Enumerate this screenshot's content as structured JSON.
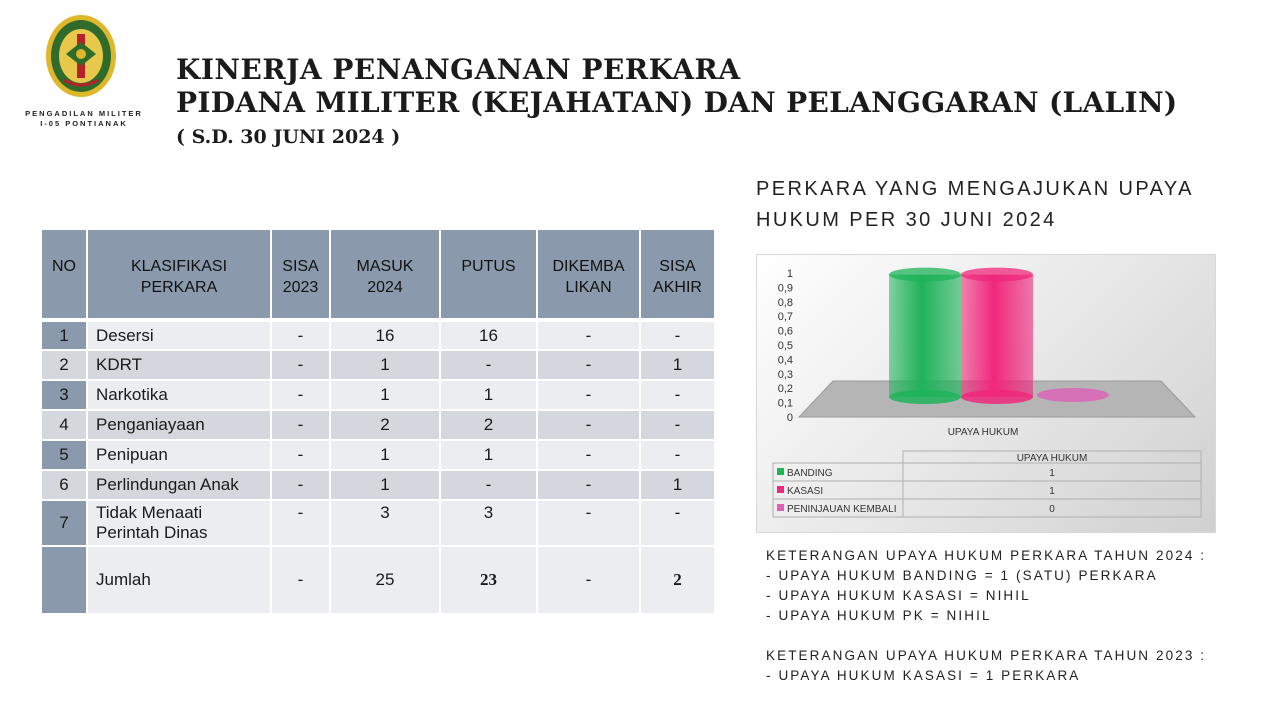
{
  "header": {
    "org_line1": "PENGADILAN MILITER",
    "org_line2": "I-05 PONTIANAK",
    "title_line1": "KINERJA PENANGANAN PERKARA",
    "title_line2": "PIDANA MILITER (KEJAHATAN) DAN PELANGGARAN (LALIN)",
    "subtitle": "( S.D. 30 JUNI 2024 )"
  },
  "table": {
    "headers": [
      "NO",
      "KLASIFIKASI PERKARA",
      "SISA 2023",
      "MASUK 2024",
      "PUTUS",
      "DIKEMBA LIKAN",
      "SISA AKHIR"
    ],
    "rows": [
      {
        "no": "1",
        "name": "Desersi",
        "sisa": "-",
        "masuk": "16",
        "putus": "16",
        "dikembalikan": "-",
        "sisa_akhir": "-"
      },
      {
        "no": "2",
        "name": "KDRT",
        "sisa": "-",
        "masuk": "1",
        "putus": "-",
        "dikembalikan": "-",
        "sisa_akhir": "1"
      },
      {
        "no": "3",
        "name": "Narkotika",
        "sisa": "-",
        "masuk": "1",
        "putus": "1",
        "dikembalikan": "-",
        "sisa_akhir": "-"
      },
      {
        "no": "4",
        "name": "Penganiayaan",
        "sisa": "-",
        "masuk": "2",
        "putus": "2",
        "dikembalikan": "-",
        "sisa_akhir": "-"
      },
      {
        "no": "5",
        "name": "Penipuan",
        "sisa": "-",
        "masuk": "1",
        "putus": "1",
        "dikembalikan": "-",
        "sisa_akhir": "-"
      },
      {
        "no": "6",
        "name": "Perlindungan Anak",
        "sisa": "-",
        "masuk": "1",
        "putus": "-",
        "dikembalikan": "-",
        "sisa_akhir": "1"
      },
      {
        "no": "7",
        "name_line1": "Tidak Menaati",
        "name_line2": "Perintah Dinas",
        "sisa": "-",
        "masuk": "3",
        "putus": "3",
        "dikembalikan": "-",
        "sisa_akhir": "-"
      }
    ],
    "total": {
      "no": "",
      "name": "Jumlah",
      "sisa": "-",
      "masuk": "25",
      "putus": "23",
      "dikembalikan": "-",
      "sisa_akhir": "2"
    }
  },
  "right": {
    "heading_line1": "PERKARA YANG MENGAJUKAN UPAYA",
    "heading_line2": "HUKUM PER 30 JUNI 2024",
    "notes_2024_title": "KETERANGAN UPAYA HUKUM PERKARA TAHUN 2024 :",
    "notes_2024": [
      "- UPAYA HUKUM BANDING = 1 (SATU) PERKARA",
      "- UPAYA HUKUM KASASI = NIHIL",
      "- UPAYA HUKUM PK = NIHIL"
    ],
    "notes_2023_title": "KETERANGAN UPAYA HUKUM PERKARA TAHUN 2023 :",
    "notes_2023": [
      "- UPAYA HUKUM KASASI = 1 PERKARA"
    ]
  },
  "chart_data": {
    "type": "bar",
    "categories": [
      "UPAYA HUKUM"
    ],
    "series": [
      {
        "name": "BANDING",
        "values": [
          1
        ],
        "color": "#1fb35a"
      },
      {
        "name": "KASASI",
        "values": [
          1
        ],
        "color": "#f0287a"
      },
      {
        "name": "PENINJAUAN KEMBALI",
        "values": [
          0
        ],
        "color": "#e060b8"
      }
    ],
    "ylim": [
      0,
      1
    ],
    "yticks": [
      "0",
      "0,1",
      "0,2",
      "0,3",
      "0,4",
      "0,5",
      "0,6",
      "0,7",
      "0,8",
      "0,9",
      "1"
    ],
    "xlabel": "UPAYA HUKUM",
    "data_table_header": "UPAYA HUKUM",
    "data_table_values": [
      "1",
      "1",
      "0"
    ]
  }
}
